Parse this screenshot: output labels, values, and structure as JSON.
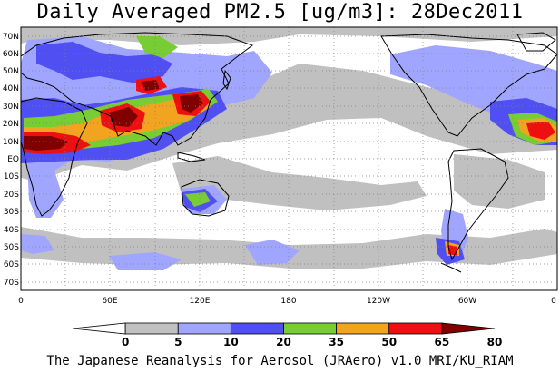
{
  "title": "Daily Averaged PM2.5 [ug/m3]: 28Dec2011",
  "credit": "The Japanese Reanalysis for Aerosol (JRAero) v1.0 MRI/KU_RIAM",
  "map": {
    "projection": "equirectangular",
    "lon_range": [
      0,
      360
    ],
    "lat_range": [
      -75,
      75
    ],
    "grid": "dotted",
    "lat_labels": [
      "70N",
      "60N",
      "50N",
      "40N",
      "30N",
      "20N",
      "10N",
      "EQ",
      "10S",
      "20S",
      "30S",
      "40S",
      "50S",
      "60S",
      "70S"
    ],
    "lon_labels": [
      "0",
      "60E",
      "120E",
      "180",
      "120W",
      "60W",
      "0"
    ]
  },
  "colorbar": {
    "labels": [
      "0",
      "5",
      "10",
      "20",
      "35",
      "50",
      "65",
      "80"
    ],
    "colors": [
      "#ffffff",
      "#c0c0c0",
      "#a0a6ff",
      "#4f4ff2",
      "#78cc34",
      "#f2a320",
      "#ee1010",
      "#800000"
    ]
  },
  "palette": {
    "land_outline": "#000000",
    "grid": "#808080"
  }
}
